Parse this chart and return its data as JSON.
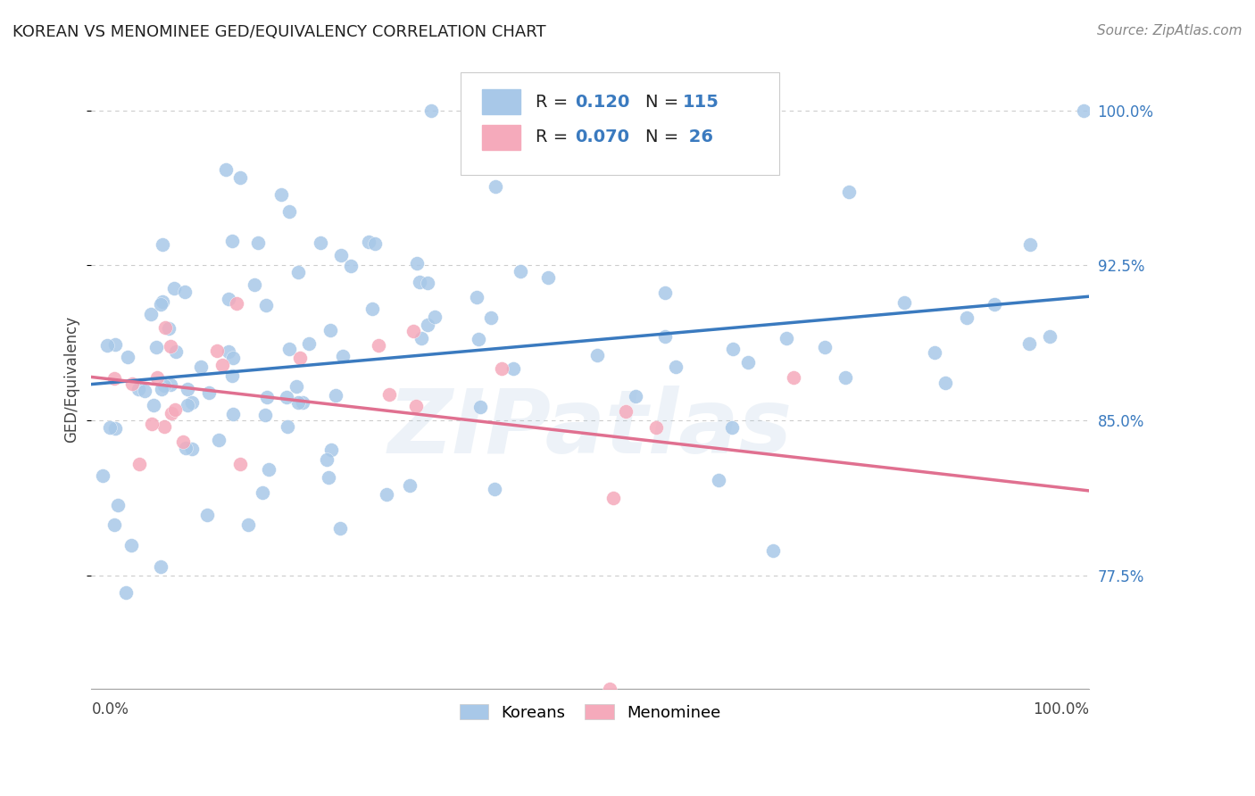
{
  "title": "KOREAN VS MENOMINEE GED/EQUIVALENCY CORRELATION CHART",
  "source": "Source: ZipAtlas.com",
  "ylabel": "GED/Equivalency",
  "xlim": [
    0.0,
    1.0
  ],
  "ylim": [
    0.72,
    1.02
  ],
  "yticks": [
    0.775,
    0.85,
    0.925,
    1.0
  ],
  "ytick_labels": [
    "77.5%",
    "85.0%",
    "92.5%",
    "100.0%"
  ],
  "korean_R": 0.12,
  "korean_N": 115,
  "menominee_R": 0.07,
  "menominee_N": 26,
  "korean_color": "#a8c8e8",
  "menominee_color": "#f5aabb",
  "korean_line_color": "#3a7abf",
  "menominee_line_color": "#e07090",
  "background_color": "#ffffff",
  "grid_color": "#cccccc",
  "watermark": "ZIPatlas",
  "legend_label_color": "#222222",
  "right_tick_color": "#3a7abf",
  "source_color": "#888888"
}
